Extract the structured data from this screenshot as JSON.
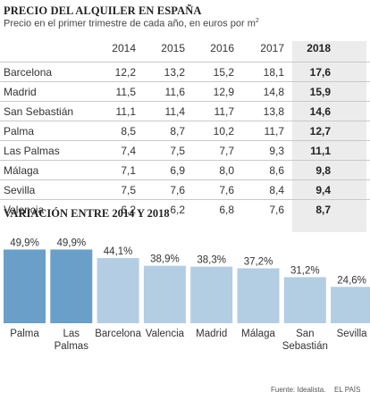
{
  "table": {
    "title": "PRECIO DEL ALQUILER EN ESPAÑA",
    "subtitle": "Precio en el primer trimestre de cada año, en euros por m",
    "subtitle_sup": "2",
    "columns": [
      "2014",
      "2015",
      "2016",
      "2017",
      "2018"
    ],
    "rows": [
      {
        "city": "Barcelona",
        "values": [
          "12,2",
          "13,2",
          "15,2",
          "18,1",
          "17,6"
        ]
      },
      {
        "city": "Madrid",
        "values": [
          "11,5",
          "11,6",
          "12,9",
          "14,8",
          "15,9"
        ]
      },
      {
        "city": "San Sebastián",
        "values": [
          "11,1",
          "11,4",
          "11,7",
          "13,8",
          "14,6"
        ]
      },
      {
        "city": "Palma",
        "values": [
          "8,5",
          "8,7",
          "10,2",
          "11,7",
          "12,7"
        ]
      },
      {
        "city": "Las Palmas",
        "values": [
          "7,4",
          "7,5",
          "7,7",
          "9,3",
          "11,1"
        ]
      },
      {
        "city": "Málaga",
        "values": [
          "7,1",
          "6,9",
          "8,0",
          "8,6",
          "9,8"
        ]
      },
      {
        "city": "Sevilla",
        "values": [
          "7,5",
          "7,6",
          "7,6",
          "8,4",
          "9,4"
        ]
      },
      {
        "city": "Valencia",
        "values": [
          "6,2",
          "6,2",
          "6,8",
          "7,6",
          "8,7"
        ]
      }
    ]
  },
  "chart_data": {
    "type": "bar",
    "title": "VARIACIÓN ENTRE 2014 Y 2018",
    "categories": [
      [
        "Palma"
      ],
      [
        "Las",
        "Palmas"
      ],
      [
        "Barcelona"
      ],
      [
        "Valencia"
      ],
      [
        "Madrid"
      ],
      [
        "Málaga"
      ],
      [
        "San",
        "Sebastián"
      ],
      [
        "Sevilla"
      ]
    ],
    "values": [
      49.9,
      49.9,
      44.1,
      38.9,
      38.3,
      37.2,
      31.2,
      24.6
    ],
    "value_labels": [
      "49,9%",
      "49,9%",
      "44,1%",
      "38,9%",
      "38,3%",
      "37,2%",
      "31,2%",
      "24,6%"
    ],
    "highlight_count": 2,
    "colors": {
      "highlight": "#6a9fca",
      "normal": "#b3cde3"
    },
    "ylim": [
      0,
      52
    ]
  },
  "footer": {
    "source": "Fuente: Idealista.",
    "brand": "EL PAÍS"
  }
}
